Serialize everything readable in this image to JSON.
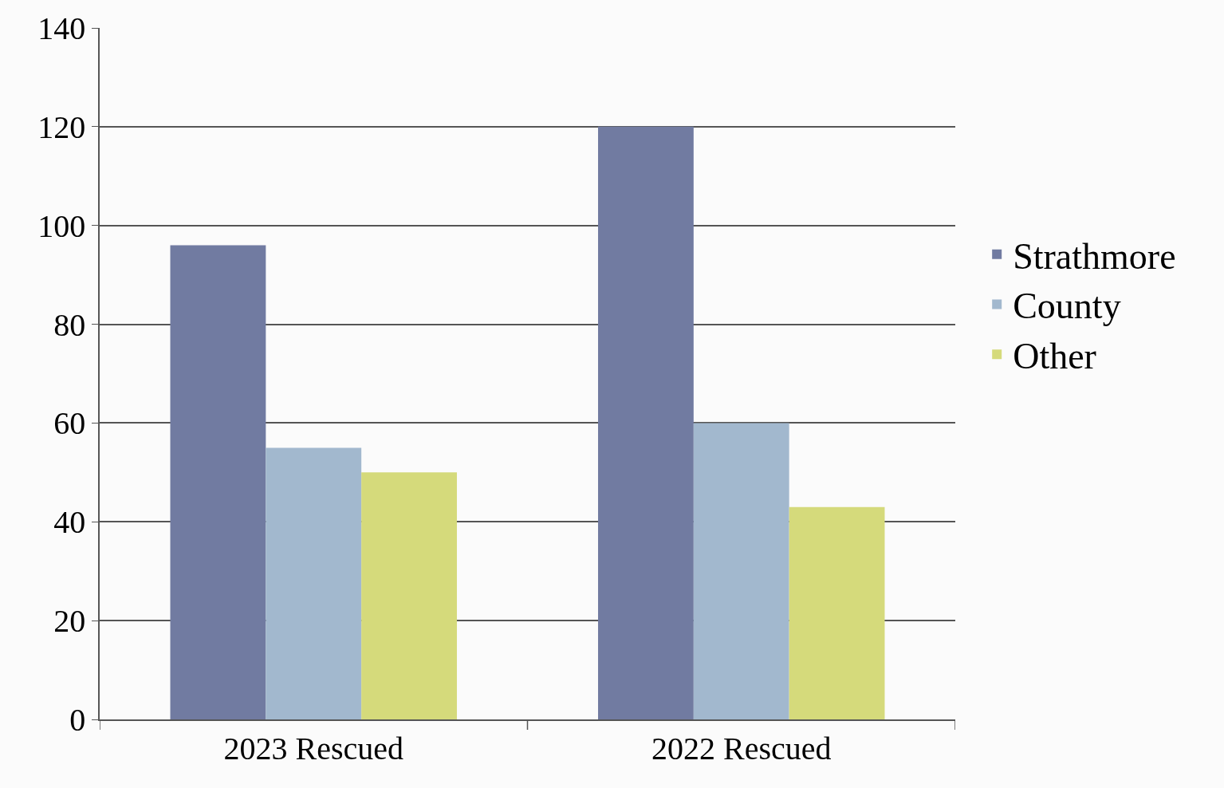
{
  "chart_data": {
    "type": "bar",
    "categories": [
      "2023 Rescued",
      "2022 Rescued"
    ],
    "series": [
      {
        "name": "Strathmore",
        "color": "#717ba1",
        "values": [
          96,
          120
        ]
      },
      {
        "name": "County",
        "color": "#a2b8ce",
        "values": [
          55,
          60
        ]
      },
      {
        "name": "Other",
        "color": "#d5da7b",
        "values": [
          50,
          43
        ]
      }
    ],
    "ylim": [
      0,
      140
    ],
    "yticks": [
      0,
      20,
      40,
      60,
      80,
      100,
      120,
      140
    ],
    "grid": "y",
    "legend": "right"
  }
}
